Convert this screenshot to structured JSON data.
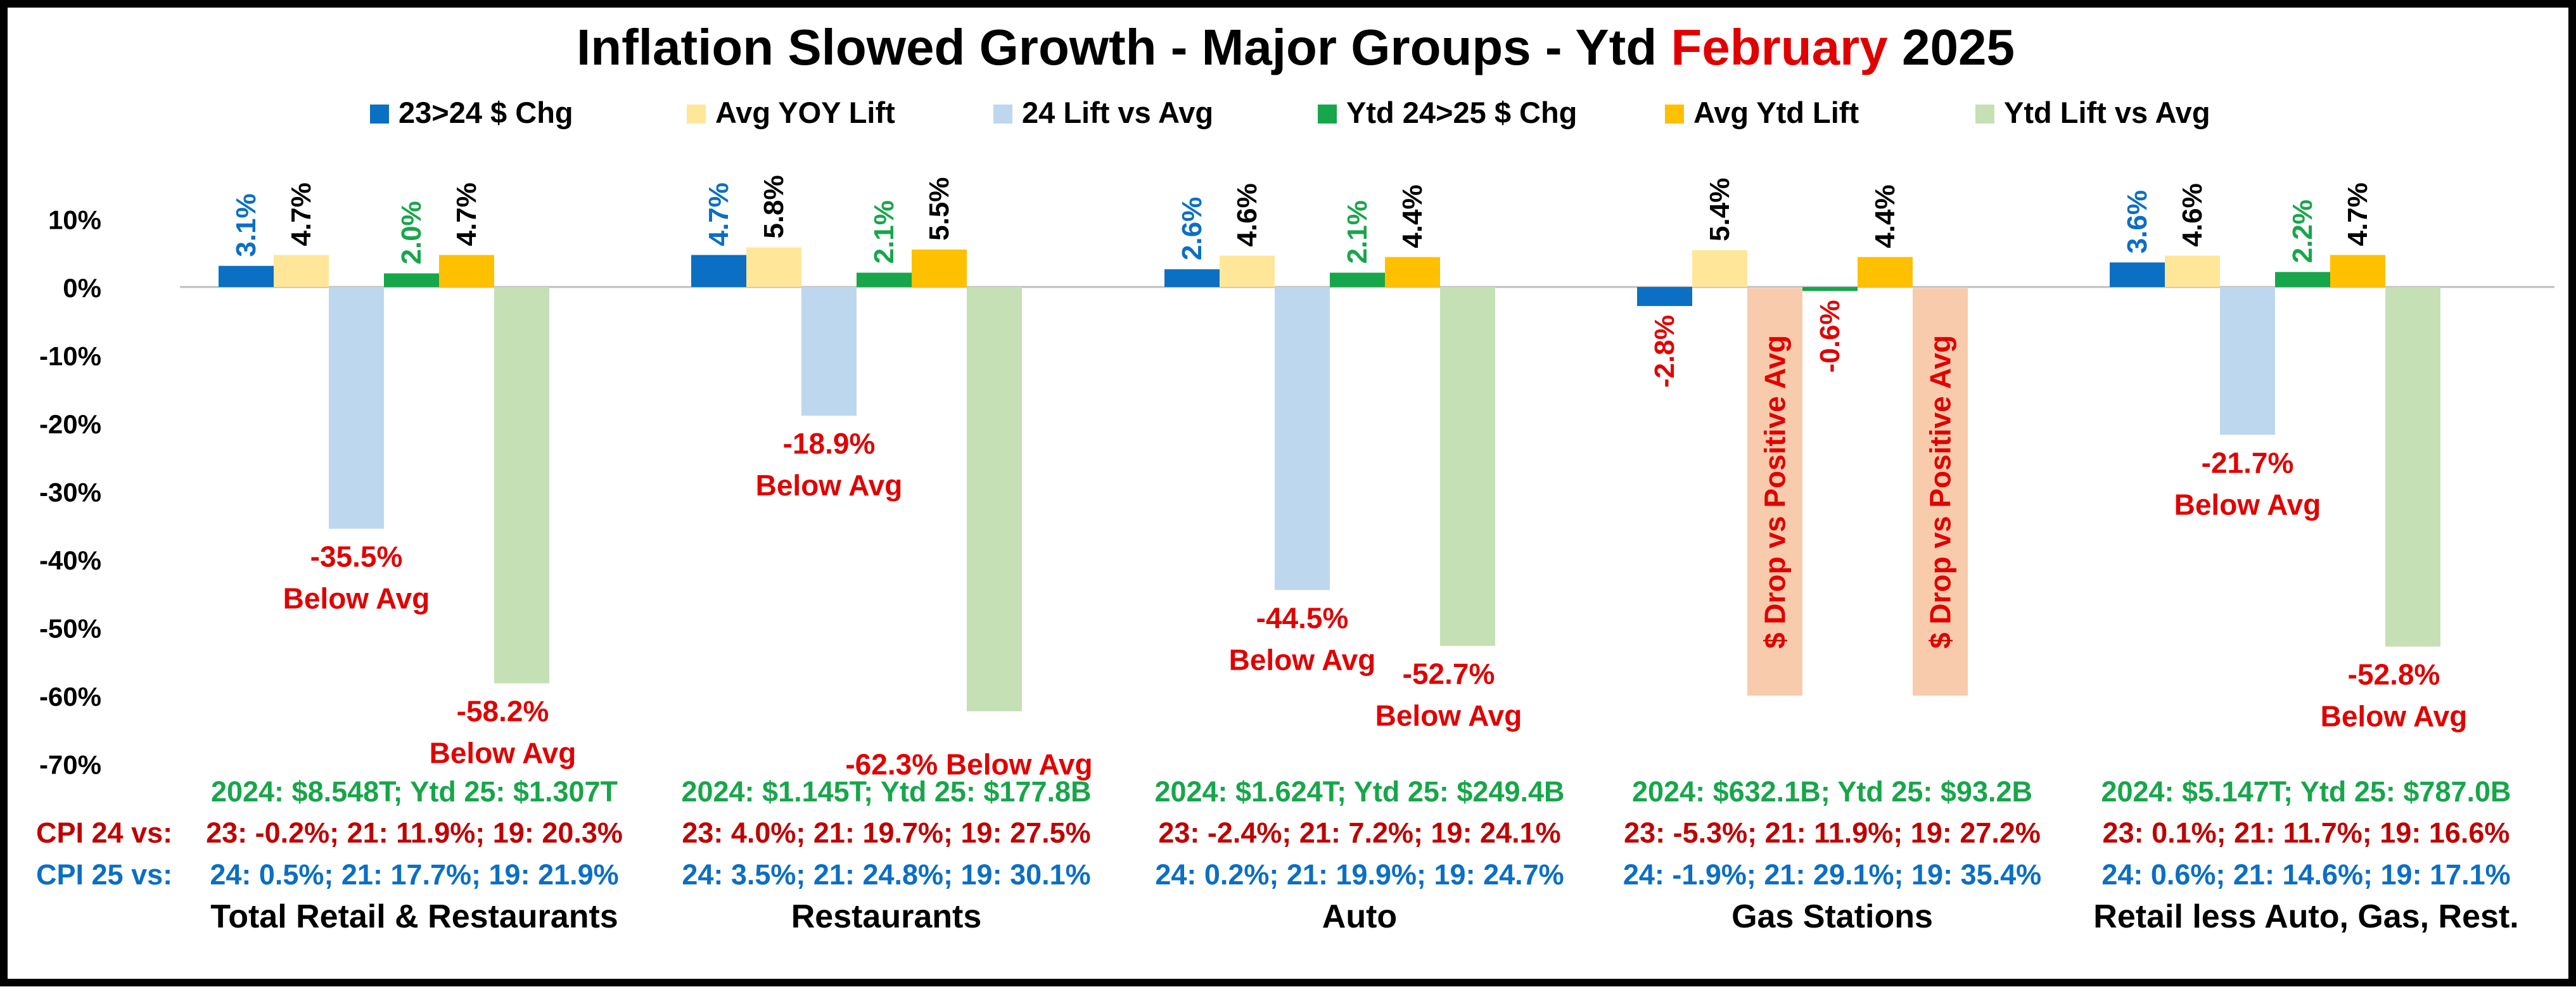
{
  "chart_data": {
    "type": "bar",
    "title_parts": [
      {
        "text": "Inflation Slowed Growth - Major Groups - Ytd ",
        "color": "#000000"
      },
      {
        "text": "February",
        "color": "#e00000"
      },
      {
        "text": " 2025",
        "color": "#000000"
      }
    ],
    "ylim": [
      -70,
      10
    ],
    "y_ticks": [
      10,
      0,
      -10,
      -20,
      -30,
      -40,
      -50,
      -60,
      -70
    ],
    "y_tick_labels": [
      "10%",
      "0%",
      "-10%",
      "-20%",
      "-30%",
      "-40%",
      "-50%",
      "-60%",
      "-70%"
    ],
    "grid": false,
    "legend_position": "top",
    "series": [
      {
        "name": "23>24 $ Chg",
        "color": "#0b6fc4",
        "values": [
          3.1,
          4.7,
          2.6,
          -2.8,
          3.6
        ]
      },
      {
        "name": "Avg YOY Lift",
        "color": "#ffe699",
        "values": [
          4.7,
          5.8,
          4.6,
          5.4,
          4.6
        ]
      },
      {
        "name": "24 Lift vs Avg",
        "color": "#bdd7ee",
        "values": [
          -35.5,
          -18.9,
          -44.5,
          null,
          -21.7
        ]
      },
      {
        "name": "Ytd 24>25 $ Chg",
        "color": "#17a64a",
        "values": [
          2.0,
          2.1,
          2.1,
          -0.6,
          2.2
        ]
      },
      {
        "name": "Avg Ytd Lift",
        "color": "#ffc000",
        "values": [
          4.7,
          5.5,
          4.4,
          4.4,
          4.7
        ]
      },
      {
        "name": "Ytd Lift vs Avg",
        "color": "#c5e0b4",
        "values": [
          -58.2,
          -62.3,
          -52.7,
          null,
          -52.8
        ]
      }
    ],
    "categories": [
      "Total Retail & Restaurants",
      "Restaurants",
      "Auto",
      "Gas Stations",
      "Retail less Auto, Gas, Rest."
    ],
    "value_labels": [
      [
        "3.1%",
        "4.7%",
        "-35.5%\nBelow Avg",
        "2.0%",
        "4.7%",
        "-58.2%\nBelow Avg"
      ],
      [
        "4.7%",
        "5.8%",
        "-18.9%\nBelow Avg",
        "2.1%",
        "5.5%",
        "-62.3% Below Avg"
      ],
      [
        "2.6%",
        "4.6%",
        "-44.5%\nBelow Avg",
        "2.1%",
        "4.4%",
        "-52.7%\nBelow Avg"
      ],
      [
        "-2.8%",
        "5.4%",
        "$ Drop vs Positive Avg",
        "-0.6%",
        "4.4%",
        "$ Drop vs Positive Avg"
      ],
      [
        "3.6%",
        "4.6%",
        "-21.7%\nBelow Avg",
        "2.2%",
        "4.7%",
        "-52.8%\nBelow Avg"
      ]
    ],
    "annotation_box": {
      "text": "$ Drop vs Positive Avg",
      "color": "#f8cbad",
      "value": -60
    },
    "row_labels": [
      {
        "text": "CPI 24 vs:",
        "color": "#c00000"
      },
      {
        "text": "CPI 25 vs:",
        "color": "#0b6fc4"
      }
    ],
    "group_notes": [
      {
        "totals": "2024: $8.548T; Ytd 25: $1.307T",
        "cpi24": "23: -0.2%; 21: 11.9%; 19: 20.3%",
        "cpi25": "24: 0.5%; 21: 17.7%; 19: 21.9%"
      },
      {
        "totals": "2024: $1.145T; Ytd 25: $177.8B",
        "cpi24": "23: 4.0%; 21: 19.7%; 19: 27.5%",
        "cpi25": "24: 3.5%; 21: 24.8%; 19: 30.1%"
      },
      {
        "totals": "2024: $1.624T; Ytd 25: $249.4B",
        "cpi24": "23: -2.4%; 21: 7.2%; 19: 24.1%",
        "cpi25": "24: 0.2%; 21: 19.9%; 19: 24.7%"
      },
      {
        "totals": "2024: $632.1B; Ytd 25: $93.2B",
        "cpi24": "23: -5.3%; 21: 11.9%; 19: 27.2%",
        "cpi25": "24: -1.9%; 21: 29.1%; 19: 35.4%"
      },
      {
        "totals": "2024: $5.147T; Ytd 25: $787.0B",
        "cpi24": "23: 0.1%; 21: 11.7%; 19: 16.6%",
        "cpi25": "24: 0.6%; 21: 14.6%; 19: 17.1%"
      }
    ],
    "note_colors": {
      "totals": "#17a64a",
      "cpi24": "#c00000",
      "cpi25": "#0b6fc4",
      "negative_label": "#e00000",
      "positive_label": "#000000"
    }
  }
}
